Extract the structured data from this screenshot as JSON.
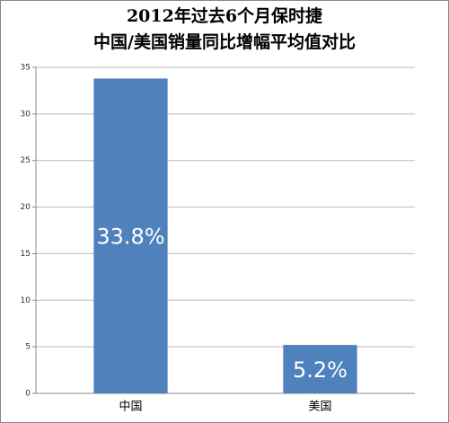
{
  "chart_data": {
    "type": "bar",
    "title": [
      "2012年过去6个月保时捷",
      "中国/美国销量同比增幅平均值对比"
    ],
    "categories": [
      "中国",
      "美国"
    ],
    "values": [
      33.8,
      5.2
    ],
    "value_labels": [
      "33.8%",
      "5.2%"
    ],
    "color": "#4f81bd",
    "ylim": [
      0,
      35
    ],
    "yticks": [
      0,
      5,
      10,
      15,
      20,
      25,
      30,
      35
    ],
    "grid": true
  }
}
